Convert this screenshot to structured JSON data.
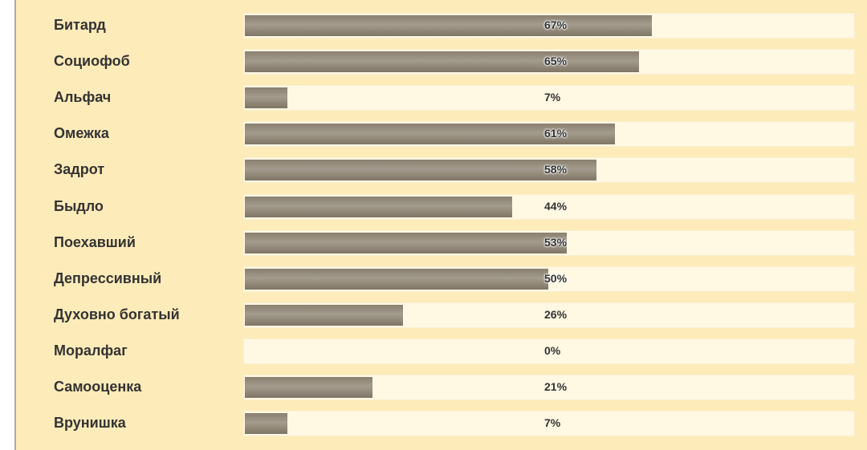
{
  "colors": {
    "panel_background": "#fdebb9",
    "track_background": "#fff8e3",
    "bar_fill": "#958c7c",
    "label_text": "#333333"
  },
  "chart_data": {
    "type": "bar",
    "orientation": "horizontal",
    "unit": "%",
    "xlim": [
      0,
      100
    ],
    "grid": false,
    "categories": [
      "Битард",
      "Социофоб",
      "Альфач",
      "Омежка",
      "Задрот",
      "Быдло",
      "Поехавший",
      "Депрессивный",
      "Духовно богатый",
      "Моралфаг",
      "Самооценка",
      "Врунишка"
    ],
    "values": [
      67,
      65,
      7,
      61,
      58,
      44,
      53,
      50,
      26,
      0,
      21,
      7
    ],
    "value_labels": [
      "67%",
      "65%",
      "7%",
      "61%",
      "58%",
      "44%",
      "53%",
      "50%",
      "26%",
      "0%",
      "21%",
      "7%"
    ]
  }
}
